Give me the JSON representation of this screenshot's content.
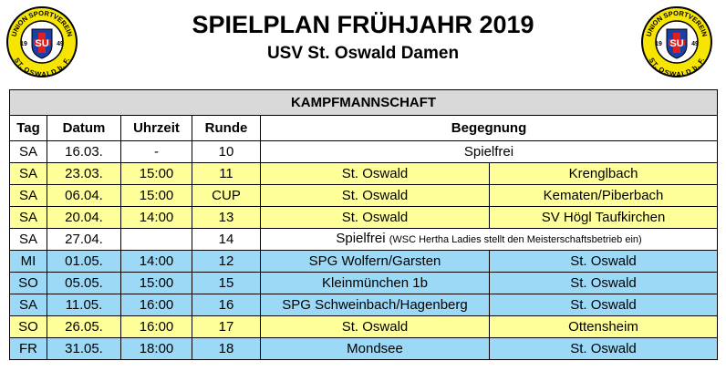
{
  "header": {
    "title": "SPIELPLAN FRÜHJAHR 2019",
    "subtitle": "USV St. Oswald Damen"
  },
  "logo": {
    "top_text": "UNION SPORTVEREIN",
    "bottom_text": "ST. OSWALD b. F.",
    "monogram": "SU",
    "year_left": "19",
    "year_right": "49"
  },
  "colors": {
    "home": "#ffff99",
    "away": "#9bd9f7",
    "free": "#ffffff",
    "section_header": "#d9d9d9"
  },
  "table": {
    "section_title": "KAMPFMANNSCHAFT",
    "headers": {
      "tag": "Tag",
      "datum": "Datum",
      "uhrzeit": "Uhrzeit",
      "runde": "Runde",
      "begegnung": "Begegnung"
    },
    "rows": [
      {
        "tag": "SA",
        "datum": "16.03.",
        "uhrzeit": "-",
        "runde": "10",
        "kind": "free",
        "text": "Spielfrei",
        "note": ""
      },
      {
        "tag": "SA",
        "datum": "23.03.",
        "uhrzeit": "15:00",
        "runde": "11",
        "kind": "home",
        "home": "St. Oswald",
        "away": "Krenglbach"
      },
      {
        "tag": "SA",
        "datum": "06.04.",
        "uhrzeit": "15:00",
        "runde": "CUP",
        "kind": "home",
        "home": "St. Oswald",
        "away": "Kematen/Piberbach"
      },
      {
        "tag": "SA",
        "datum": "20.04.",
        "uhrzeit": "14:00",
        "runde": "13",
        "kind": "home",
        "home": "St. Oswald",
        "away": "SV Högl Taufkirchen"
      },
      {
        "tag": "SA",
        "datum": "27.04.",
        "uhrzeit": "",
        "runde": "14",
        "kind": "free",
        "text": "Spielfrei",
        "note": "(WSC Hertha Ladies stellt den Meisterschaftsbetrieb ein)"
      },
      {
        "tag": "MI",
        "datum": "01.05.",
        "uhrzeit": "14:00",
        "runde": "12",
        "kind": "away",
        "home": "SPG Wolfern/Garsten",
        "away": "St. Oswald"
      },
      {
        "tag": "SO",
        "datum": "05.05.",
        "uhrzeit": "15:00",
        "runde": "15",
        "kind": "away",
        "home": "Kleinmünchen 1b",
        "away": "St. Oswald"
      },
      {
        "tag": "SA",
        "datum": "11.05.",
        "uhrzeit": "16:00",
        "runde": "16",
        "kind": "away",
        "home": "SPG Schweinbach/Hagenberg",
        "away": "St. Oswald"
      },
      {
        "tag": "SO",
        "datum": "26.05.",
        "uhrzeit": "16:00",
        "runde": "17",
        "kind": "home",
        "home": "St. Oswald",
        "away": "Ottensheim"
      },
      {
        "tag": "FR",
        "datum": "31.05.",
        "uhrzeit": "18:00",
        "runde": "18",
        "kind": "away",
        "home": "Mondsee",
        "away": "St. Oswald"
      }
    ]
  }
}
